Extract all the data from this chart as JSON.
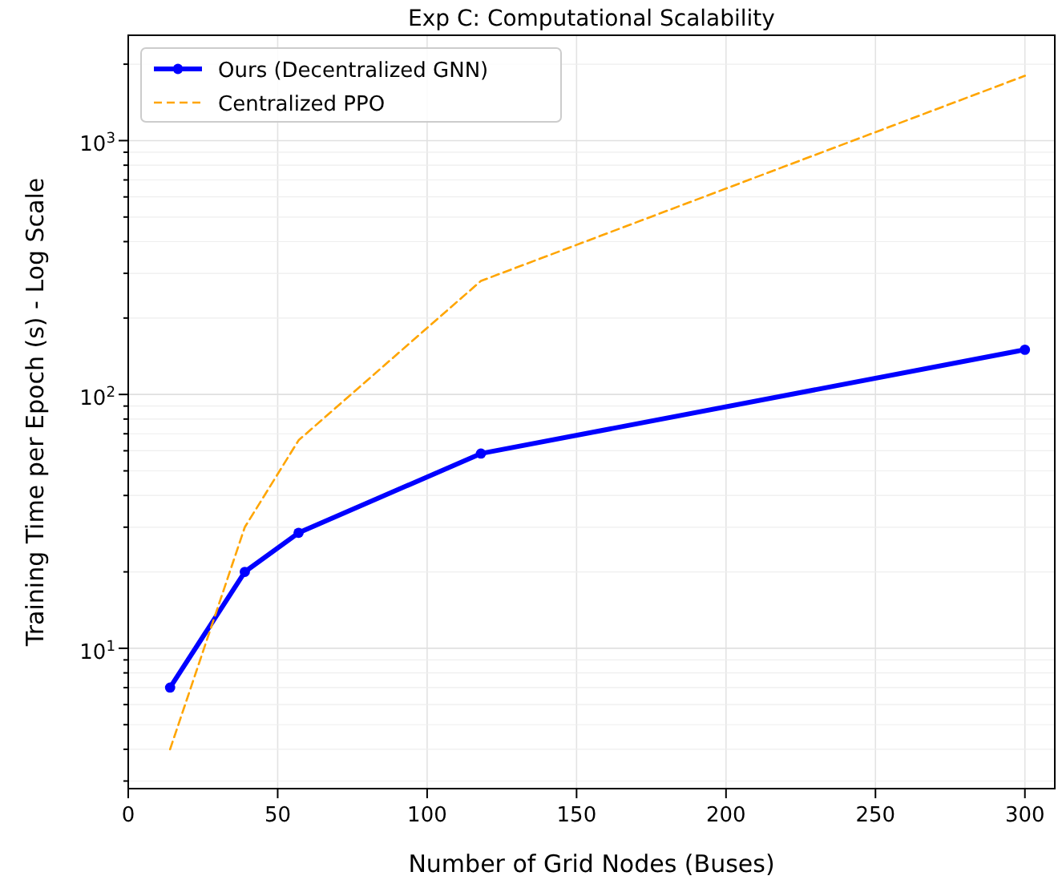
{
  "chart_data": {
    "type": "line",
    "title": "Exp C: Computational Scalability",
    "xlabel": "Number of Grid Nodes (Buses)",
    "ylabel": "Training Time per Epoch (s) - Log Scale",
    "x": [
      14,
      39,
      57,
      118,
      300
    ],
    "series": [
      {
        "name": "Ours (Decentralized GNN)",
        "color": "#0000ff",
        "values": [
          7,
          20,
          28.5,
          58.5,
          150
        ],
        "marker": "circle",
        "line_style": "solid"
      },
      {
        "name": "Centralized PPO",
        "color": "#ffa500",
        "values": [
          4,
          30,
          66,
          280,
          1800
        ],
        "marker": "none",
        "line_style": "dashed"
      }
    ],
    "xlim": [
      0,
      310
    ],
    "xticks": [
      0,
      50,
      100,
      150,
      200,
      250,
      300
    ],
    "ylim": [
      2.8,
      2600
    ],
    "yticks": [
      {
        "value": 10,
        "label": "10$^{1}$"
      },
      {
        "value": 100,
        "label": "10$^{2}$"
      },
      {
        "value": 1000,
        "label": "10$^{3}$"
      }
    ],
    "log": "y",
    "grid": true,
    "legend": "top left"
  }
}
